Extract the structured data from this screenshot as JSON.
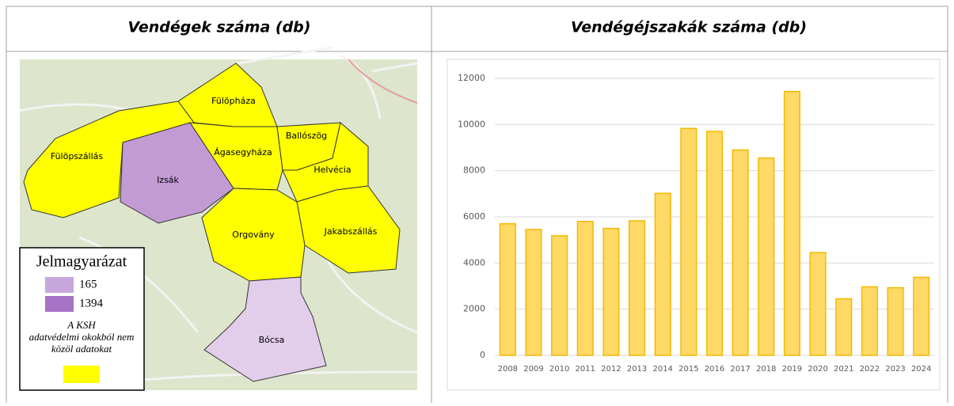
{
  "table": {
    "headers": [
      "Vendégek száma (db)",
      "Vendégéjszakák száma (db)"
    ]
  },
  "map": {
    "regions": [
      {
        "label": "Fülöpháza",
        "color": "#ffff00"
      },
      {
        "label": "Fülöpszállás",
        "color": "#ffff00"
      },
      {
        "label": "Izsák",
        "color": "#c39bd3"
      },
      {
        "label": "Ágasegyháza",
        "color": "#ffff00"
      },
      {
        "label": "Ballószög",
        "color": "#ffff00"
      },
      {
        "label": "Helvécia",
        "color": "#ffff00"
      },
      {
        "label": "Jakabszállás",
        "color": "#ffff00"
      },
      {
        "label": "Orgovány",
        "color": "#ffff00"
      },
      {
        "label": "Bócsa",
        "color": "#e2cdea"
      }
    ],
    "legend": {
      "title": "Jelmagyarázat",
      "items": [
        {
          "label": "165",
          "color": "#c8a8dc"
        },
        {
          "label": "1394",
          "color": "#a673c6"
        }
      ],
      "note": "A KSH adatvédelmi okokból nem közöl adatokat",
      "note_color": "#ffff00"
    }
  },
  "chart_data": {
    "type": "bar",
    "categories": [
      "2008",
      "2009",
      "2010",
      "2011",
      "2012",
      "2013",
      "2014",
      "2015",
      "2016",
      "2017",
      "2018",
      "2019",
      "2020",
      "2021",
      "2022",
      "2023",
      "2024"
    ],
    "values": [
      5700,
      5450,
      5180,
      5800,
      5500,
      5830,
      7020,
      9830,
      9700,
      8900,
      8550,
      11430,
      4450,
      2450,
      2970,
      2930,
      3380
    ],
    "color": "#ffd966",
    "edge_color": "#f4b800",
    "ylim": [
      0,
      12000
    ],
    "yticks": [
      0,
      2000,
      4000,
      6000,
      8000,
      10000,
      12000
    ],
    "grid": true
  }
}
